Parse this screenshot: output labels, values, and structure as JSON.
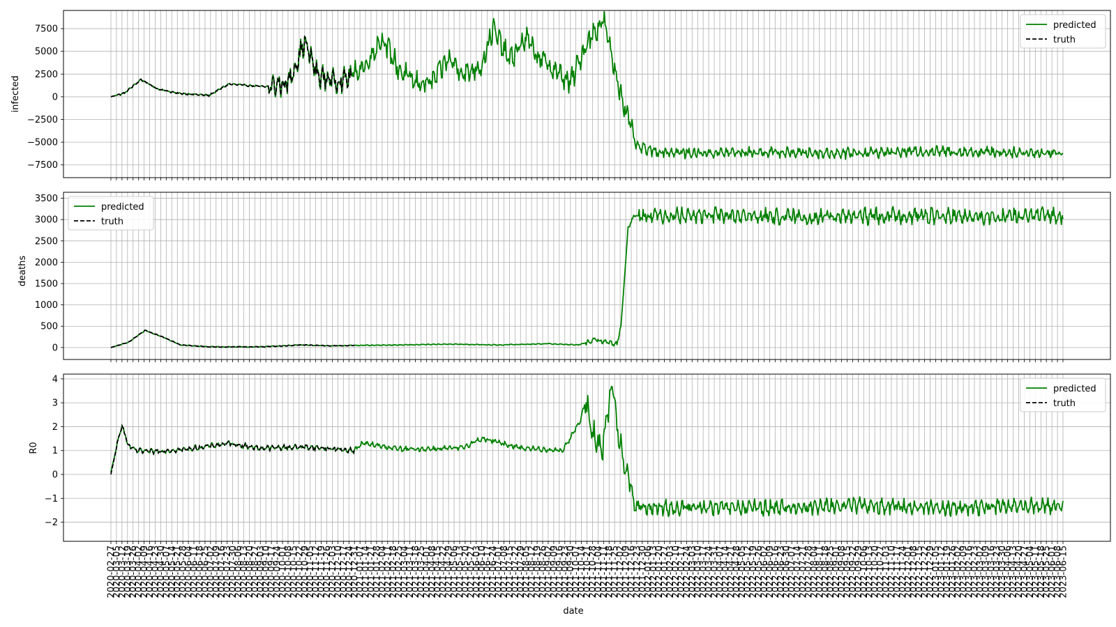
{
  "chart_data": [
    {
      "type": "line",
      "ylabel": "infected",
      "yticks": [
        -7500,
        -5000,
        -2500,
        0,
        2500,
        5000,
        7500
      ],
      "ytick_labels": [
        "−7500",
        "−5000",
        "−2500",
        "0",
        "2500",
        "5000",
        "7500"
      ],
      "ylim": [
        -8900,
        9500
      ],
      "legend": {
        "position": "top-right",
        "entries": [
          "predicted",
          "truth"
        ]
      },
      "grid": true,
      "series": [
        {
          "name": "predicted",
          "color": "#008000",
          "style": "solid",
          "x": [
            "2020-02-27",
            "2020-03-15",
            "2020-04-05",
            "2020-04-25",
            "2020-05-20",
            "2020-06-30",
            "2020-07-25",
            "2020-09-10",
            "2020-10-08",
            "2020-10-29",
            "2020-11-15",
            "2020-12-10",
            "2020-12-24",
            "2021-01-14",
            "2021-02-04",
            "2021-02-25",
            "2021-03-18",
            "2021-04-08",
            "2021-04-29",
            "2021-05-20",
            "2021-06-10",
            "2021-06-24",
            "2021-07-15",
            "2021-08-05",
            "2021-08-19",
            "2021-09-09",
            "2021-09-30",
            "2021-10-21",
            "2021-11-11",
            "2021-11-25",
            "2021-12-09",
            "2021-12-23",
            "2022-01-13",
            "2022-03-03",
            "2022-05-26",
            "2022-09-08",
            "2022-12-29",
            "2023-03-30",
            "2023-06-15"
          ],
          "y": [
            0,
            400,
            1900,
            900,
            400,
            150,
            1400,
            1100,
            1500,
            6000,
            2300,
            1700,
            2200,
            3500,
            6500,
            3000,
            1500,
            1600,
            4200,
            2500,
            3500,
            7500,
            4000,
            6500,
            4500,
            3000,
            1500,
            6000,
            8500,
            3000,
            -1500,
            -5500,
            -6000,
            -6200,
            -6100,
            -6200,
            -6000,
            -6100,
            -6200
          ]
        },
        {
          "name": "truth",
          "color": "#000000",
          "style": "dashed",
          "x": [
            "2020-02-27",
            "2020-03-15",
            "2020-04-05",
            "2020-04-25",
            "2020-05-20",
            "2020-06-30",
            "2020-07-25",
            "2020-09-10",
            "2020-10-08",
            "2020-10-29",
            "2020-11-15",
            "2020-12-10",
            "2020-12-27"
          ],
          "y": [
            0,
            400,
            1900,
            900,
            400,
            150,
            1400,
            1100,
            1500,
            6000,
            2300,
            1700,
            2200
          ]
        }
      ]
    },
    {
      "type": "line",
      "ylabel": "deaths",
      "yticks": [
        0,
        500,
        1000,
        1500,
        2000,
        2500,
        3000,
        3500
      ],
      "ytick_labels": [
        "0",
        "500",
        "1000",
        "1500",
        "2000",
        "2500",
        "3000",
        "3500"
      ],
      "ylim": [
        -280,
        3640
      ],
      "legend": {
        "position": "top-left",
        "entries": [
          "predicted",
          "truth"
        ]
      },
      "grid": true,
      "series": [
        {
          "name": "predicted",
          "color": "#008000",
          "style": "solid",
          "x": [
            "2020-02-27",
            "2020-03-20",
            "2020-04-10",
            "2020-05-01",
            "2020-05-25",
            "2020-07-01",
            "2020-09-01",
            "2020-10-25",
            "2020-12-01",
            "2020-12-31",
            "2021-03-01",
            "2021-05-01",
            "2021-07-01",
            "2021-09-01",
            "2021-10-10",
            "2021-11-01",
            "2021-11-28",
            "2021-12-03",
            "2021-12-12",
            "2021-12-20",
            "2022-01-01",
            "2022-04-01",
            "2022-08-01",
            "2022-12-01",
            "2023-03-01",
            "2023-06-15"
          ],
          "y": [
            0,
            120,
            400,
            260,
            60,
            15,
            15,
            60,
            40,
            50,
            60,
            80,
            60,
            90,
            60,
            180,
            80,
            500,
            2800,
            3100,
            3100,
            3100,
            3050,
            3100,
            3050,
            3100
          ]
        },
        {
          "name": "truth",
          "color": "#000000",
          "style": "dashed",
          "x": [
            "2020-02-27",
            "2020-03-20",
            "2020-04-10",
            "2020-05-01",
            "2020-05-25",
            "2020-07-01",
            "2020-09-01",
            "2020-10-25",
            "2020-12-01",
            "2020-12-31"
          ],
          "y": [
            0,
            120,
            400,
            260,
            60,
            15,
            15,
            60,
            40,
            50
          ]
        }
      ]
    },
    {
      "type": "line",
      "ylabel": "R0",
      "yticks": [
        -2,
        -1,
        0,
        1,
        2,
        3,
        4
      ],
      "ytick_labels": [
        "−2",
        "−1",
        "0",
        "1",
        "2",
        "3",
        "4"
      ],
      "ylim": [
        -2.8,
        4.2
      ],
      "legend": {
        "position": "top-right",
        "entries": [
          "predicted",
          "truth"
        ]
      },
      "grid": true,
      "series": [
        {
          "name": "predicted",
          "color": "#008000",
          "style": "solid",
          "x": [
            "2020-02-27",
            "2020-03-05",
            "2020-03-12",
            "2020-03-20",
            "2020-03-30",
            "2020-04-15",
            "2020-06-01",
            "2020-07-25",
            "2020-09-01",
            "2020-11-01",
            "2020-12-31",
            "2021-01-10",
            "2021-03-01",
            "2021-05-15",
            "2021-06-10",
            "2021-08-01",
            "2021-09-20",
            "2021-10-12",
            "2021-10-20",
            "2021-10-28",
            "2021-11-10",
            "2021-11-22",
            "2021-11-28",
            "2021-12-10",
            "2021-12-20",
            "2022-01-01",
            "2022-02-01",
            "2022-06-01",
            "2022-10-01",
            "2023-02-01",
            "2023-06-15"
          ],
          "y": [
            0.1,
            1.1,
            2.1,
            1.2,
            1.0,
            0.95,
            1.05,
            1.3,
            1.1,
            1.15,
            1.0,
            1.3,
            1.05,
            1.1,
            1.5,
            1.1,
            1.0,
            2.2,
            3.1,
            1.7,
            1.0,
            3.9,
            2.0,
            0.2,
            -1.3,
            -1.4,
            -1.4,
            -1.4,
            -1.3,
            -1.4,
            -1.3
          ]
        },
        {
          "name": "truth",
          "color": "#000000",
          "style": "dashed",
          "x": [
            "2020-02-27",
            "2020-03-05",
            "2020-03-12",
            "2020-03-20",
            "2020-03-30",
            "2020-04-15",
            "2020-06-01",
            "2020-07-25",
            "2020-09-01",
            "2020-11-01",
            "2020-12-31"
          ],
          "y": [
            0.0,
            1.1,
            2.1,
            1.2,
            1.0,
            0.95,
            1.05,
            1.3,
            1.1,
            1.15,
            1.0
          ]
        }
      ]
    }
  ],
  "xlabel": "date",
  "x_tick_labels": [
    "2020-02-27",
    "2020-03-05",
    "2020-03-12",
    "2020-03-19",
    "2020-03-26",
    "2020-04-02",
    "2020-04-09",
    "2020-04-16",
    "2020-04-23",
    "2020-04-30",
    "2020-05-07",
    "2020-05-14",
    "2020-05-21",
    "2020-05-28",
    "2020-06-04",
    "2020-06-11",
    "2020-06-18",
    "2020-06-25",
    "2020-07-02",
    "2020-07-09",
    "2020-07-16",
    "2020-07-23",
    "2020-07-30",
    "2020-08-06",
    "2020-08-13",
    "2020-08-20",
    "2020-08-27",
    "2020-09-03",
    "2020-09-10",
    "2020-09-17",
    "2020-09-24",
    "2020-10-01",
    "2020-10-08",
    "2020-10-15",
    "2020-10-22",
    "2020-10-29",
    "2020-11-05",
    "2020-11-12",
    "2020-11-19",
    "2020-11-26",
    "2020-12-03",
    "2020-12-10",
    "2020-12-17",
    "2020-12-24",
    "2020-12-31",
    "2021-01-07",
    "2021-01-14",
    "2021-01-21",
    "2021-01-28",
    "2021-02-04",
    "2021-02-11",
    "2021-02-18",
    "2021-02-25",
    "2021-03-04",
    "2021-03-11",
    "2021-03-18",
    "2021-03-25",
    "2021-04-01",
    "2021-04-08",
    "2021-04-15",
    "2021-04-22",
    "2021-04-29",
    "2021-05-06",
    "2021-05-13",
    "2021-05-20",
    "2021-05-27",
    "2021-06-03",
    "2021-06-10",
    "2021-06-17",
    "2021-06-24",
    "2021-07-01",
    "2021-07-08",
    "2021-07-15",
    "2021-07-22",
    "2021-07-29",
    "2021-08-05",
    "2021-08-12",
    "2021-08-19",
    "2021-08-26",
    "2021-09-02",
    "2021-09-09",
    "2021-09-16",
    "2021-09-23",
    "2021-09-30",
    "2021-10-07",
    "2021-10-14",
    "2021-10-21",
    "2021-10-28",
    "2021-11-04",
    "2021-11-11",
    "2021-11-18",
    "2021-11-25",
    "2021-12-02",
    "2021-12-09",
    "2021-12-16",
    "2021-12-23",
    "2021-12-30",
    "2022-01-06",
    "2022-01-13",
    "2022-01-20",
    "2022-01-27",
    "2022-02-03",
    "2022-02-10",
    "2022-02-17",
    "2022-02-24",
    "2022-03-03",
    "2022-03-10",
    "2022-03-17",
    "2022-03-24",
    "2022-03-31",
    "2022-04-07",
    "2022-04-14",
    "2022-04-21",
    "2022-04-28",
    "2022-05-05",
    "2022-05-12",
    "2022-05-19",
    "2022-05-26",
    "2022-06-02",
    "2022-06-09",
    "2022-06-16",
    "2022-06-23",
    "2022-06-30",
    "2022-07-07",
    "2022-07-14",
    "2022-07-21",
    "2022-07-28",
    "2022-08-04",
    "2022-08-11",
    "2022-08-18",
    "2022-08-25",
    "2022-09-01",
    "2022-09-08",
    "2022-09-15",
    "2022-09-22",
    "2022-09-29",
    "2022-10-06",
    "2022-10-13",
    "2022-10-20",
    "2022-10-27",
    "2022-11-03",
    "2022-11-10",
    "2022-11-17",
    "2022-11-24",
    "2022-12-01",
    "2022-12-08",
    "2022-12-15",
    "2022-12-22",
    "2022-12-29",
    "2023-01-05",
    "2023-01-12",
    "2023-01-19",
    "2023-01-26",
    "2023-02-02",
    "2023-02-09",
    "2023-02-16",
    "2023-02-23",
    "2023-03-02",
    "2023-03-09",
    "2023-03-16",
    "2023-03-23",
    "2023-03-30",
    "2023-04-06",
    "2023-04-13",
    "2023-04-20",
    "2023-04-27",
    "2023-05-04",
    "2023-05-11",
    "2023-05-18",
    "2023-05-25",
    "2023-06-01",
    "2023-06-08",
    "2023-06-15"
  ]
}
